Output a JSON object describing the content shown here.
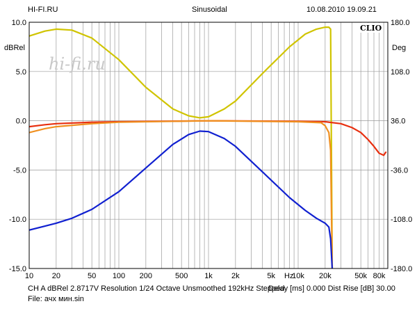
{
  "header": {
    "left": "HI-FI.RU",
    "center": "Sinusoidal",
    "right": "10.08.2010 19.09.21"
  },
  "brand": "CLIO",
  "watermark": "hi-fi.ru",
  "footer": {
    "line1_left": "CH A  dBRel 2.8717V  Resolution 1/24 Octave  Unsmoothed  192kHz  Stepped",
    "line1_right": "Delay [ms] 0.000  Dist Rise [dB] 30.00",
    "line2": "File: ачх мин.sin"
  },
  "chart_data": {
    "type": "line",
    "xscale": "log",
    "xlim": [
      10,
      100000
    ],
    "ylim": [
      -15,
      10
    ],
    "y2lim": [
      -180,
      180
    ],
    "ylabel": "dBRel",
    "y2label": "Deg",
    "xunit": "Hz",
    "grid": true,
    "x_ticks": [
      {
        "v": 10,
        "label": "10"
      },
      {
        "v": 20,
        "label": "20"
      },
      {
        "v": 50,
        "label": "50"
      },
      {
        "v": 100,
        "label": "100"
      },
      {
        "v": 200,
        "label": "200"
      },
      {
        "v": 500,
        "label": "500"
      },
      {
        "v": 1000,
        "label": "1k"
      },
      {
        "v": 2000,
        "label": "2k"
      },
      {
        "v": 5000,
        "label": "5k"
      },
      {
        "v": 10000,
        "label": "10k"
      },
      {
        "v": 20000,
        "label": "20k"
      },
      {
        "v": 50000,
        "label": "50k"
      },
      {
        "v": 80000,
        "label": "80k"
      }
    ],
    "y_ticks": [
      {
        "v": 10,
        "label": "10.0"
      },
      {
        "v": 5,
        "label": "5.0"
      },
      {
        "v": 0,
        "label": "0.0"
      },
      {
        "v": -5,
        "label": "-5.0"
      },
      {
        "v": -10,
        "label": "-10.0"
      },
      {
        "v": -15,
        "label": "-15.0"
      }
    ],
    "y2_ticks": [
      {
        "v": 180,
        "label": "180.0"
      },
      {
        "v": 108,
        "label": "108.0"
      },
      {
        "v": 36,
        "label": "36.0"
      },
      {
        "v": -36,
        "label": "-36.0"
      },
      {
        "v": -108,
        "label": "-108.0"
      },
      {
        "v": -180,
        "label": "-180.0"
      }
    ],
    "series": [
      {
        "color": "#d0c400",
        "axis": "y",
        "points": [
          [
            10,
            8.6
          ],
          [
            15,
            9.1
          ],
          [
            20,
            9.3
          ],
          [
            30,
            9.2
          ],
          [
            50,
            8.4
          ],
          [
            100,
            6.2
          ],
          [
            200,
            3.4
          ],
          [
            400,
            1.2
          ],
          [
            600,
            0.5
          ],
          [
            800,
            0.3
          ],
          [
            1000,
            0.4
          ],
          [
            1500,
            1.2
          ],
          [
            2000,
            2.0
          ],
          [
            4000,
            4.8
          ],
          [
            8000,
            7.5
          ],
          [
            12000,
            8.8
          ],
          [
            16000,
            9.3
          ],
          [
            20000,
            9.5
          ],
          [
            22000,
            9.5
          ],
          [
            23000,
            9.3
          ],
          [
            24000,
            -15
          ]
        ]
      },
      {
        "color": "#e83010",
        "axis": "y",
        "points": [
          [
            10,
            -0.6
          ],
          [
            15,
            -0.4
          ],
          [
            20,
            -0.3
          ],
          [
            50,
            -0.15
          ],
          [
            100,
            -0.1
          ],
          [
            1000,
            0
          ],
          [
            10000,
            -0.05
          ],
          [
            20000,
            -0.1
          ],
          [
            30000,
            -0.3
          ],
          [
            40000,
            -0.7
          ],
          [
            50000,
            -1.2
          ],
          [
            60000,
            -1.9
          ],
          [
            70000,
            -2.6
          ],
          [
            80000,
            -3.3
          ],
          [
            90000,
            -3.5
          ],
          [
            95000,
            -3.2
          ]
        ]
      },
      {
        "color": "#f09020",
        "axis": "y",
        "points": [
          [
            10,
            -1.2
          ],
          [
            15,
            -0.8
          ],
          [
            20,
            -0.6
          ],
          [
            50,
            -0.3
          ],
          [
            100,
            -0.15
          ],
          [
            1000,
            0
          ],
          [
            10000,
            -0.1
          ],
          [
            18000,
            -0.2
          ],
          [
            20000,
            -0.5
          ],
          [
            22000,
            -1.2
          ],
          [
            23000,
            -3
          ],
          [
            24000,
            -15
          ]
        ]
      },
      {
        "color": "#1020d0",
        "axis": "y",
        "points": [
          [
            10,
            -11.1
          ],
          [
            15,
            -10.7
          ],
          [
            20,
            -10.4
          ],
          [
            30,
            -9.9
          ],
          [
            50,
            -9.0
          ],
          [
            100,
            -7.2
          ],
          [
            200,
            -4.8
          ],
          [
            400,
            -2.4
          ],
          [
            600,
            -1.4
          ],
          [
            800,
            -1.05
          ],
          [
            1000,
            -1.1
          ],
          [
            1500,
            -1.8
          ],
          [
            2000,
            -2.6
          ],
          [
            4000,
            -5.2
          ],
          [
            8000,
            -7.8
          ],
          [
            12000,
            -9.1
          ],
          [
            16000,
            -9.9
          ],
          [
            20000,
            -10.4
          ],
          [
            22000,
            -10.8
          ],
          [
            23000,
            -12
          ],
          [
            24000,
            -15
          ]
        ]
      }
    ]
  }
}
